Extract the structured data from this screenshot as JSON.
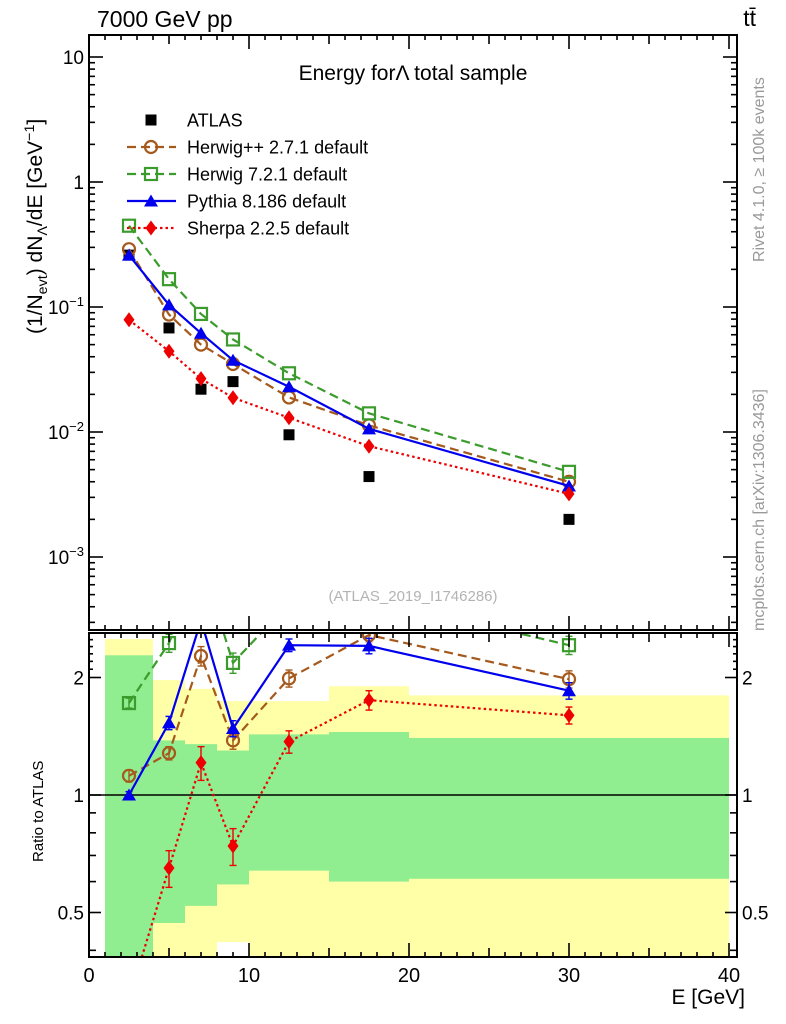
{
  "header": {
    "left": "7000 GeV pp",
    "right": "tt̄"
  },
  "sidebar_right": {
    "top": "Rivet 4.1.0, ≥ 100k events",
    "bottom": "mcplots.cern.ch [arXiv:1306.3436]"
  },
  "watermark": "(ATLAS_2019_I1746286)",
  "ylabel": {
    "pre": "(1/N",
    "sub1": "evt",
    "mid": ") dN",
    "sub2": "Λ",
    "mid2": "/dE [GeV",
    "sup": "−1",
    "post": "]"
  },
  "chart_data": {
    "type": "line",
    "title": "Energy forΛ total sample",
    "xlabel": "E [GeV]",
    "ratio_label": "Ratio to ATLAS",
    "legend_position": "top-left-inside",
    "grid": false,
    "x": [
      2.5,
      5,
      7,
      9,
      12.5,
      17.5,
      30
    ],
    "bin_edges": [
      1,
      4,
      6,
      8,
      10,
      15,
      20,
      40
    ],
    "xlim": [
      0,
      40.5
    ],
    "ylim_main": [
      0.00026,
      15
    ],
    "ylim_ratio": [
      0.385,
      2.6
    ],
    "x_ticks": [
      {
        "v": 0,
        "t": "0"
      },
      {
        "v": 10,
        "t": "10"
      },
      {
        "v": 20,
        "t": "20"
      },
      {
        "v": 30,
        "t": "30"
      },
      {
        "v": 40,
        "t": "40"
      }
    ],
    "y_ticks_main": [
      {
        "v": 10,
        "t": "10",
        "e": ""
      },
      {
        "v": 1,
        "t": "1",
        "e": ""
      },
      {
        "v": 0.1,
        "t": "10",
        "e": "−1"
      },
      {
        "v": 0.01,
        "t": "10",
        "e": "−2"
      },
      {
        "v": 0.001,
        "t": "10",
        "e": "−3"
      }
    ],
    "y_ticks_ratio": [
      {
        "v": 2,
        "t": "2"
      },
      {
        "v": 1,
        "t": "1"
      },
      {
        "v": 0.5,
        "t": "0.5"
      }
    ],
    "y_minor_ratio": [
      0.4,
      0.6,
      0.7,
      0.8,
      0.9
    ],
    "y_subminor_ratio": [
      2.1,
      2.2,
      2.3,
      2.4,
      2.5
    ],
    "band_colors": {
      "yellow": "#ffffa8",
      "green": "#90ee90"
    },
    "bands": [
      {
        "x0": 1,
        "x1": 4,
        "yellow": [
          0.385,
          2.51
        ],
        "green": [
          0.385,
          2.28
        ]
      },
      {
        "x0": 4,
        "x1": 6,
        "yellow": [
          0.385,
          1.97
        ],
        "green": [
          0.47,
          1.38
        ]
      },
      {
        "x0": 6,
        "x1": 8,
        "yellow": [
          0.385,
          1.87
        ],
        "green": [
          0.52,
          1.35
        ]
      },
      {
        "x0": 8,
        "x1": 10,
        "yellow": [
          0.42,
          1.74
        ],
        "green": [
          0.59,
          1.3
        ]
      },
      {
        "x0": 10,
        "x1": 15,
        "yellow": [
          0.385,
          1.74
        ],
        "green": [
          0.64,
          1.43
        ]
      },
      {
        "x0": 15,
        "x1": 20,
        "yellow": [
          0.385,
          1.9
        ],
        "green": [
          0.6,
          1.45
        ]
      },
      {
        "x0": 20,
        "x1": 40,
        "yellow": [
          0.385,
          1.8
        ],
        "green": [
          0.61,
          1.4
        ]
      }
    ],
    "series": [
      {
        "key": "atlas",
        "name": "ATLAS",
        "color": "#000000",
        "marker": "square-filled",
        "line": "none",
        "values": [
          0.26,
          0.068,
          0.022,
          0.0253,
          0.0095,
          0.0044,
          0.002
        ]
      },
      {
        "key": "herwigpp",
        "name": "Herwig++ 2.7.1 default",
        "color": "#a5591d",
        "marker": "circle-open",
        "line": "dashed",
        "values": [
          0.29,
          0.087,
          0.05,
          0.035,
          0.0189,
          0.0113,
          0.004
        ],
        "ratio": [
          1.12,
          1.28,
          2.27,
          1.38,
          1.99,
          2.57,
          1.98
        ],
        "ratio_err": [
          0.04,
          0.05,
          0.13,
          0.07,
          0.1,
          0.1,
          0.1
        ]
      },
      {
        "key": "herwig7",
        "name": "Herwig 7.2.1 default",
        "color": "#3c9b2d",
        "marker": "square-open",
        "line": "dashed",
        "values": [
          0.447,
          0.167,
          0.088,
          0.055,
          0.0295,
          0.0141,
          0.0048
        ],
        "ratio": [
          1.72,
          2.45,
          4.0,
          2.18,
          3.1,
          3.2,
          2.42
        ],
        "ratio_err": [
          0.05,
          0.13,
          0.15,
          0.13,
          0.15,
          0.15,
          0.13
        ]
      },
      {
        "key": "pythia",
        "name": "Pythia 8.186 default",
        "color": "#0000ee",
        "marker": "triangle-filled",
        "line": "solid",
        "values": [
          0.26,
          0.104,
          0.0617,
          0.0375,
          0.023,
          0.0106,
          0.0037
        ],
        "ratio": [
          1.0,
          1.53,
          2.8,
          1.48,
          2.42,
          2.41,
          1.85
        ],
        "ratio_err": [
          0.02,
          0.06,
          0.1,
          0.07,
          0.09,
          0.11,
          0.09
        ]
      },
      {
        "key": "sherpa",
        "name": "Sherpa 2.2.5 default",
        "color": "#ee0000",
        "marker": "diamond-filled",
        "line": "dotted",
        "values": [
          0.079,
          0.0443,
          0.0267,
          0.0188,
          0.013,
          0.0077,
          0.0032
        ],
        "ratio": [
          0.3,
          0.65,
          1.21,
          0.74,
          1.37,
          1.75,
          1.6
        ],
        "ratio_err": [
          0.03,
          0.07,
          0.12,
          0.08,
          0.09,
          0.1,
          0.08
        ]
      }
    ]
  }
}
